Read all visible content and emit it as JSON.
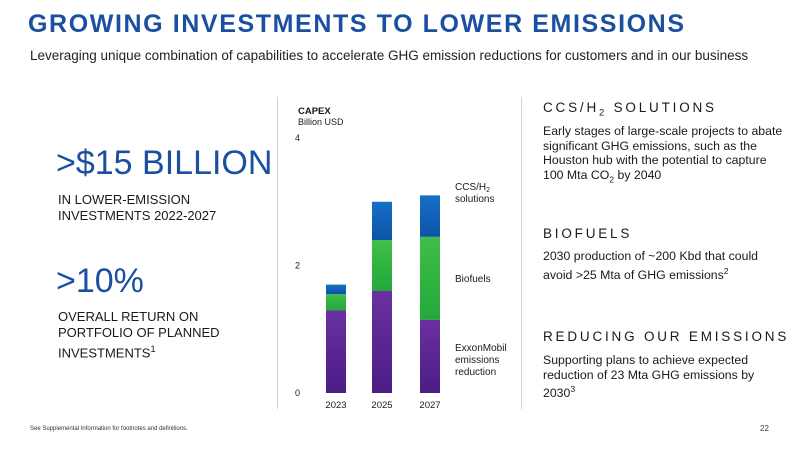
{
  "header": {
    "title": "GROWING INVESTMENTS TO LOWER EMISSIONS",
    "subtitle": "Leveraging unique combination of capabilities to accelerate GHG emission reductions for customers and in our business"
  },
  "left": {
    "stat1_value": ">$15 BILLION",
    "stat1_line1": "IN LOWER-EMISSION",
    "stat1_line2": "INVESTMENTS 2022-2027",
    "stat2_value": ">10%",
    "stat2_line1": "OVERALL RETURN ON",
    "stat2_line2": "PORTFOLIO OF PLANNED",
    "stat2_line3": "INVESTMENTS",
    "stat2_footnote": "1"
  },
  "right": {
    "ccs_head_pre": "CCS/H",
    "ccs_head_sub": "2",
    "ccs_head_post": " SOLUTIONS",
    "ccs_text_pre": "Early stages of large-scale projects to abate significant GHG emissions, such as the Houston hub with the potential to capture 100 Mta CO",
    "ccs_text_sub": "2",
    "ccs_text_post": " by 2040",
    "bio_head": "BIOFUELS",
    "bio_text": "2030 production of ~200 Kbd that could avoid >25 Mta of GHG emissions",
    "bio_footnote": "2",
    "red_head": "REDUCING OUR EMISSIONS",
    "red_text": "Supporting plans to achieve expected reduction of 23 Mta GHG emissions by 2030",
    "red_footnote": "3"
  },
  "footer": {
    "note": "See Supplemental Information for footnotes and definitions.",
    "page": "22"
  },
  "colors": {
    "title_blue": "#1b4fa0",
    "ccs_top": "#1570c6",
    "ccs_bottom": "#0e53a8",
    "bio_top": "#3fbf4a",
    "bio_bottom": "#24a83a",
    "emis_top": "#6b2fa1",
    "emis_bottom": "#4b1d86"
  },
  "chart_data": {
    "type": "bar",
    "stacked": true,
    "title": "CAPEX",
    "unit_label": "Billion USD",
    "categories": [
      "2023",
      "2025",
      "2027"
    ],
    "yticks": [
      "0",
      "2",
      "4"
    ],
    "ylim": [
      0,
      4
    ],
    "series": [
      {
        "name": "ExxonMobil emissions reduction",
        "label_lines": [
          "ExxonMobil",
          "emissions",
          "reduction"
        ],
        "values": [
          1.3,
          1.6,
          1.15
        ]
      },
      {
        "name": "Biofuels",
        "label_lines": [
          "Biofuels"
        ],
        "values": [
          0.25,
          0.8,
          1.3
        ]
      },
      {
        "name": "CCS/H2 solutions",
        "label_lines": [
          "CCS/H",
          "solutions"
        ],
        "label_sub": "2",
        "values": [
          0.15,
          0.6,
          0.65
        ]
      }
    ],
    "legend": "right-inline"
  }
}
